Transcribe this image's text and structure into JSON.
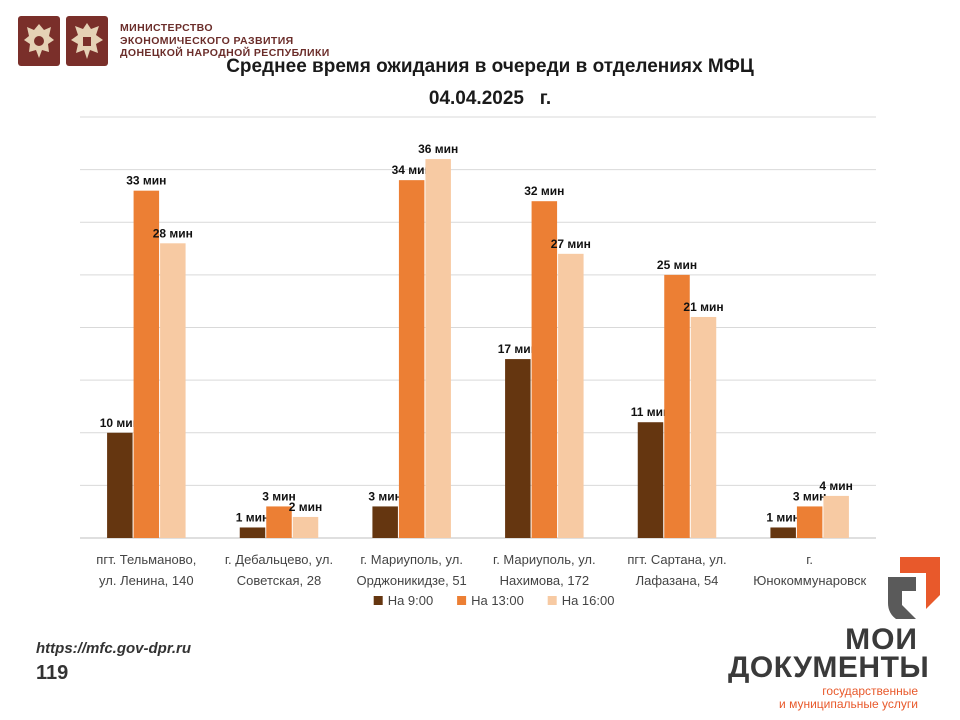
{
  "header": {
    "ministry_line1": "МИНИСТЕРСТВО",
    "ministry_line2": "ЭКОНОМИЧЕСКОГО РАЗВИТИЯ",
    "ministry_line3": "ДОНЕЦКОЙ НАРОДНОЙ РЕСПУБЛИКИ"
  },
  "footer": {
    "url": "https://mfc.gov-dpr.ru",
    "page_number": "119"
  },
  "brand": {
    "word1": "МОИ",
    "word2": "ДОКУМЕНТЫ",
    "tagline1": "государственные",
    "tagline2": "и муниципальные услуги",
    "color_accent": "#e8592b"
  },
  "chart_data": {
    "type": "bar",
    "title": "Среднее время ожидания в очереди в отделениях МФЦ",
    "subtitle": "04.04.2025   г.",
    "value_suffix": " мин",
    "ylim": [
      0,
      40
    ],
    "grid": true,
    "legend_position": "bottom",
    "categories": [
      [
        "пгт. Тельманово,",
        "ул. Ленина, 140"
      ],
      [
        "г. Дебальцево, ул.",
        "Советская, 28"
      ],
      [
        "г. Мариуполь, ул.",
        "Орджоникидзе, 51"
      ],
      [
        "г. Мариуполь, ул.",
        "Нахимова, 172"
      ],
      [
        "пгт. Сартана, ул.",
        "Лафазана, 54"
      ],
      [
        "г.",
        "Юнокоммунаровск"
      ]
    ],
    "series": [
      {
        "name": "На 9:00",
        "color": "#653610",
        "values": [
          10,
          1,
          3,
          17,
          11,
          1
        ]
      },
      {
        "name": "На 13:00",
        "color": "#ec7f34",
        "values": [
          33,
          3,
          34,
          32,
          25,
          3
        ]
      },
      {
        "name": "На 16:00",
        "color": "#f7caa3",
        "values": [
          28,
          2,
          36,
          27,
          21,
          4
        ]
      }
    ]
  }
}
